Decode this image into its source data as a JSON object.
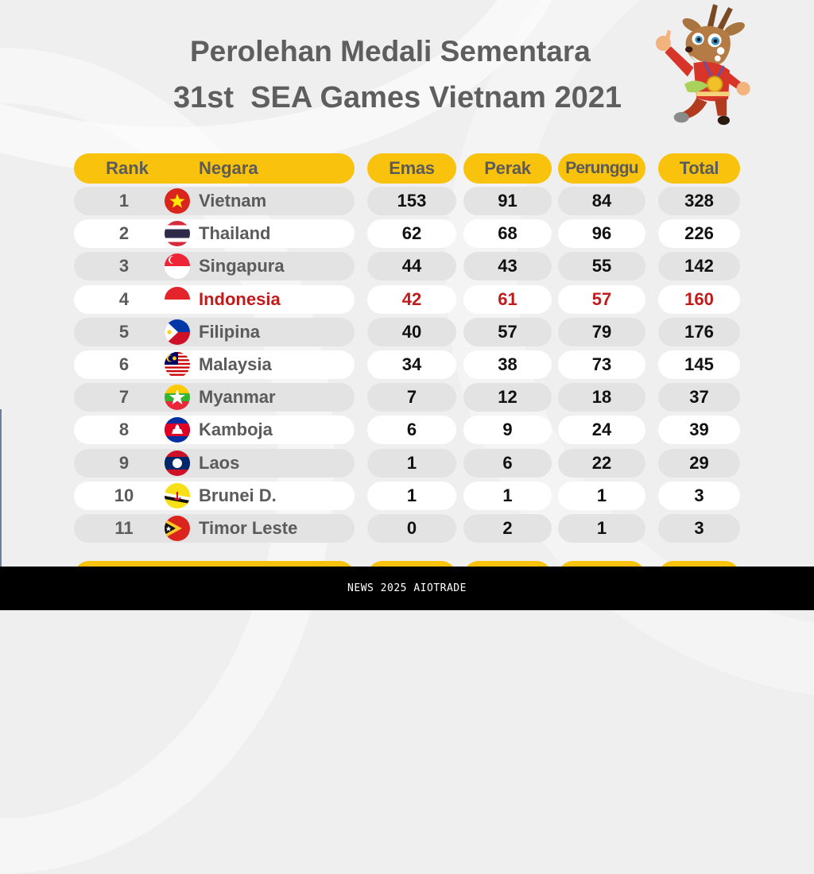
{
  "title": {
    "line1": "Perolehan Medali Sementara",
    "line2": "31st  SEA Games Vietnam 2021"
  },
  "mascot": {
    "icon": "sao-la-mascot-icon"
  },
  "table": {
    "headers": {
      "rank": "Rank",
      "country": "Negara",
      "gold": "Emas",
      "silver": "Perak",
      "bronze": "Perunggu",
      "total": "Total"
    },
    "colors": {
      "header_bg": "#f9c20c",
      "header_text": "#5b5b5b",
      "row_grey": "#e3e3e3",
      "row_white": "#ffffff",
      "highlight": "#c21b1b"
    },
    "rows": [
      {
        "rank": "1",
        "country": "Vietnam",
        "flag": "vietnam-flag-icon",
        "gold": "153",
        "silver": "91",
        "bronze": "84",
        "total": "328"
      },
      {
        "rank": "2",
        "country": "Thailand",
        "flag": "thailand-flag-icon",
        "gold": "62",
        "silver": "68",
        "bronze": "96",
        "total": "226"
      },
      {
        "rank": "3",
        "country": "Singapura",
        "flag": "singapore-flag-icon",
        "gold": "44",
        "silver": "43",
        "bronze": "55",
        "total": "142"
      },
      {
        "rank": "4",
        "country": "Indonesia",
        "flag": "indonesia-flag-icon",
        "gold": "42",
        "silver": "61",
        "bronze": "57",
        "total": "160",
        "highlight": true
      },
      {
        "rank": "5",
        "country": "Filipina",
        "flag": "philippines-flag-icon",
        "gold": "40",
        "silver": "57",
        "bronze": "79",
        "total": "176"
      },
      {
        "rank": "6",
        "country": "Malaysia",
        "flag": "malaysia-flag-icon",
        "gold": "34",
        "silver": "38",
        "bronze": "73",
        "total": "145"
      },
      {
        "rank": "7",
        "country": "Myanmar",
        "flag": "myanmar-flag-icon",
        "gold": "7",
        "silver": "12",
        "bronze": "18",
        "total": "37"
      },
      {
        "rank": "8",
        "country": "Kamboja",
        "flag": "cambodia-flag-icon",
        "gold": "6",
        "silver": "9",
        "bronze": "24",
        "total": "39"
      },
      {
        "rank": "9",
        "country": "Laos",
        "flag": "laos-flag-icon",
        "gold": "1",
        "silver": "6",
        "bronze": "22",
        "total": "29"
      },
      {
        "rank": "10",
        "country": "Brunei D.",
        "flag": "brunei-flag-icon",
        "gold": "1",
        "silver": "1",
        "bronze": "1",
        "total": "3"
      },
      {
        "rank": "11",
        "country": "Timor Leste",
        "flag": "timor-leste-flag-icon",
        "gold": "0",
        "silver": "2",
        "bronze": "1",
        "total": "3"
      }
    ]
  },
  "footer": {
    "text": "NEWS 2025 AIOTRADE"
  }
}
